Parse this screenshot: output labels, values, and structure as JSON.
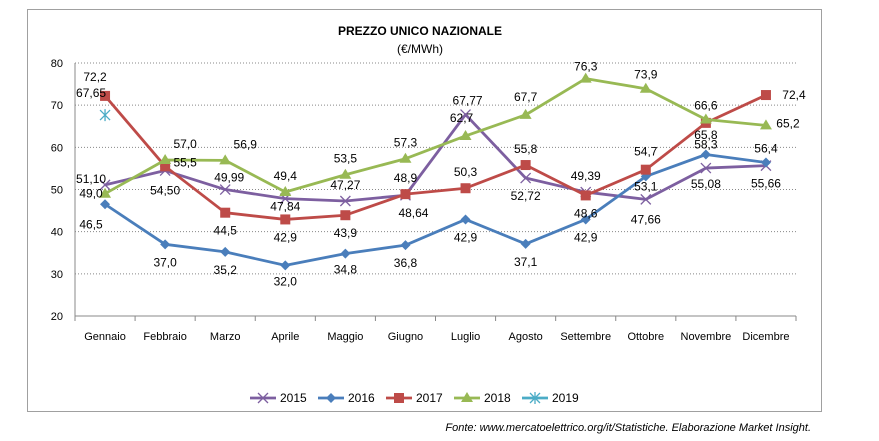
{
  "chart_data": {
    "type": "line",
    "title": "PREZZO UNICO NAZIONALE",
    "subtitle": "(€/MWh)",
    "xlabel": "",
    "ylabel": "",
    "ylim": [
      20,
      80
    ],
    "yticks": [
      20,
      30,
      40,
      50,
      60,
      70,
      80
    ],
    "grid": true,
    "legend_position": "bottom",
    "categories": [
      "Gennaio",
      "Febbraio",
      "Marzo",
      "Aprile",
      "Maggio",
      "Giugno",
      "Luglio",
      "Agosto",
      "Settembre",
      "Ottobre",
      "Novembre",
      "Dicembre"
    ],
    "series": [
      {
        "name": "2015",
        "color": "#7D5FA0",
        "marker": "x",
        "values": [
          51.1,
          54.5,
          49.99,
          47.84,
          47.27,
          48.64,
          67.77,
          52.72,
          49.39,
          47.66,
          55.08,
          55.66
        ],
        "labels": [
          "51,10",
          "54,50",
          "49,99",
          "47,84",
          "47,27",
          "48,64",
          "67,77",
          "52,72",
          "49,39",
          "47,66",
          "55,08",
          "55,66"
        ]
      },
      {
        "name": "2016",
        "color": "#4A7EBB",
        "marker": "diamond",
        "values": [
          46.5,
          37.0,
          35.2,
          32.0,
          34.8,
          36.8,
          42.9,
          37.1,
          42.9,
          53.1,
          58.3,
          56.4
        ],
        "labels": [
          "46,5",
          "37,0",
          "35,2",
          "32,0",
          "34,8",
          "36,8",
          "42,9",
          "37,1",
          "42,9",
          "53,1",
          "58,3",
          "56,4"
        ]
      },
      {
        "name": "2017",
        "color": "#BE4B48",
        "marker": "square",
        "values": [
          72.2,
          55.5,
          44.5,
          42.9,
          43.9,
          48.9,
          50.3,
          55.8,
          48.6,
          54.7,
          65.8,
          72.4
        ],
        "labels": [
          "72,2",
          "55,5",
          "44,5",
          "42,9",
          "43,9",
          "48,9",
          "50,3",
          "55,8",
          "48,6",
          "54,7",
          "65,8",
          "72,4"
        ]
      },
      {
        "name": "2018",
        "color": "#98B954",
        "marker": "triangle",
        "values": [
          49.0,
          57.0,
          56.9,
          49.4,
          53.5,
          57.3,
          62.7,
          67.7,
          76.3,
          73.9,
          66.6,
          65.2
        ],
        "labels": [
          "49,0",
          "57,0",
          "56,9",
          "49,4",
          "53,5",
          "57,3",
          "62,7",
          "67,7",
          "76,3",
          "73,9",
          "66,6",
          "65,2"
        ]
      },
      {
        "name": "2019",
        "color": "#4BACC6",
        "marker": "asterisk",
        "values": [
          67.65,
          null,
          null,
          null,
          null,
          null,
          null,
          null,
          null,
          null,
          null,
          null
        ],
        "labels": [
          "67,65"
        ]
      }
    ]
  },
  "source": "Fonte: www.mercatoelettrico.org/it/Statistiche. Elaborazione Market Insight."
}
